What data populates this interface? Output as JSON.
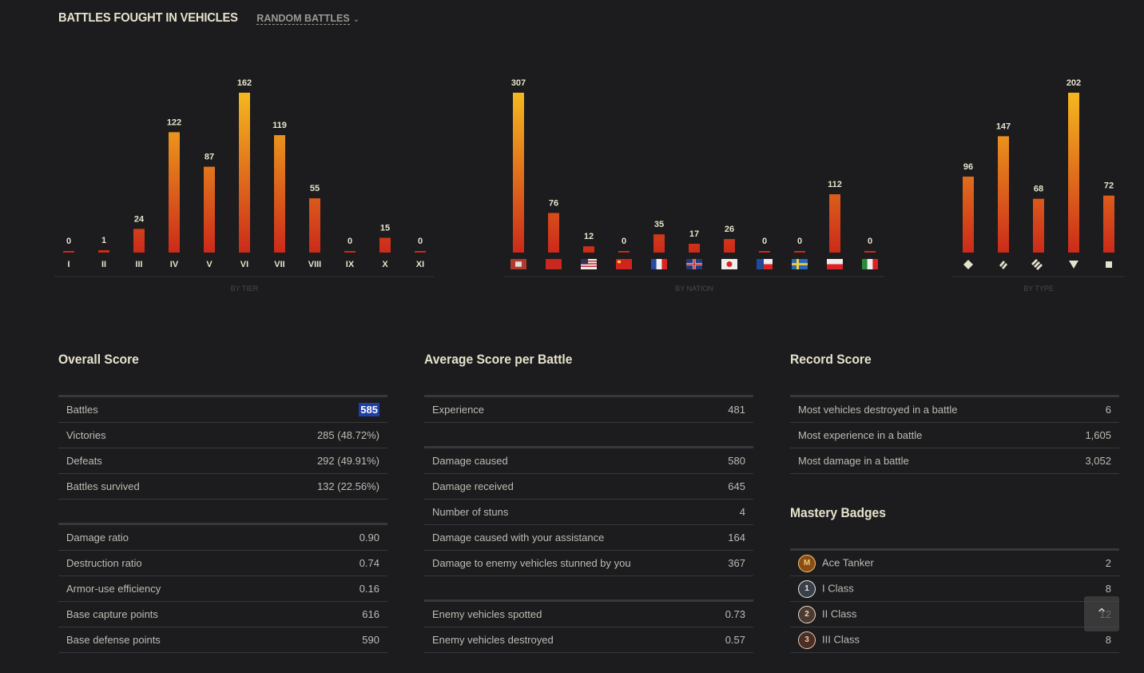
{
  "header": {
    "title": "BATTLES FOUGHT IN VEHICLES",
    "mode_select": "RANDOM BATTLES"
  },
  "chart_data": [
    {
      "type": "bar",
      "title": "BY TIER",
      "categories": [
        "I",
        "II",
        "III",
        "IV",
        "V",
        "VI",
        "VII",
        "VIII",
        "IX",
        "X",
        "XI"
      ],
      "values": [
        0,
        1,
        24,
        122,
        87,
        162,
        119,
        55,
        0,
        15,
        0
      ]
    },
    {
      "type": "bar",
      "title": "BY NATION",
      "categories": [
        "Germany",
        "USSR",
        "USA",
        "China",
        "France",
        "UK",
        "Japan",
        "Czechoslovakia",
        "Sweden",
        "Poland",
        "Italy"
      ],
      "values": [
        307,
        76,
        12,
        0,
        35,
        17,
        26,
        0,
        0,
        112,
        0
      ]
    },
    {
      "type": "bar",
      "title": "BY TYPE",
      "categories": [
        "Light Tank",
        "Medium Tank",
        "Heavy Tank",
        "Tank Destroyer",
        "SPG"
      ],
      "values": [
        96,
        147,
        68,
        202,
        72
      ]
    }
  ],
  "colors": {
    "bar_top": "#f5b81e",
    "bar_bottom": "#cc2a1a",
    "highlight": "#1e3fa8"
  },
  "overall": {
    "title": "Overall Score",
    "group1": [
      {
        "label": "Battles",
        "value": "585"
      },
      {
        "label": "Victories",
        "value": "285 (48.72%)"
      },
      {
        "label": "Defeats",
        "value": "292 (49.91%)"
      },
      {
        "label": "Battles survived",
        "value": "132 (22.56%)"
      }
    ],
    "group2": [
      {
        "label": "Damage ratio",
        "value": "0.90"
      },
      {
        "label": "Destruction ratio",
        "value": "0.74"
      },
      {
        "label": "Armor-use efficiency",
        "value": "0.16"
      },
      {
        "label": "Base capture points",
        "value": "616"
      },
      {
        "label": "Base defense points",
        "value": "590"
      }
    ]
  },
  "average": {
    "title": "Average Score per Battle",
    "group1": [
      {
        "label": "Experience",
        "value": "481"
      }
    ],
    "group2": [
      {
        "label": "Damage caused",
        "value": "580"
      },
      {
        "label": "Damage received",
        "value": "645"
      },
      {
        "label": "Number of stuns",
        "value": "4"
      },
      {
        "label": "Damage caused with your assistance",
        "value": "164"
      },
      {
        "label": "Damage to enemy vehicles stunned by you",
        "value": "367"
      }
    ],
    "group3": [
      {
        "label": "Enemy vehicles spotted",
        "value": "0.73"
      },
      {
        "label": "Enemy vehicles destroyed",
        "value": "0.57"
      }
    ]
  },
  "record": {
    "title": "Record Score",
    "rows": [
      {
        "label": "Most vehicles destroyed in a battle",
        "value": "6"
      },
      {
        "label": "Most experience in a battle",
        "value": "1,605"
      },
      {
        "label": "Most damage in a battle",
        "value": "3,052"
      }
    ]
  },
  "mastery": {
    "title": "Mastery Badges",
    "rows": [
      {
        "badge": "M",
        "label": "Ace Tanker",
        "value": "2"
      },
      {
        "badge": "1",
        "label": "I Class",
        "value": "8"
      },
      {
        "badge": "2",
        "label": "II Class",
        "value": "12"
      },
      {
        "badge": "3",
        "label": "III Class",
        "value": "8"
      }
    ]
  },
  "scroll_top_icon": "double-chevron-up-icon"
}
